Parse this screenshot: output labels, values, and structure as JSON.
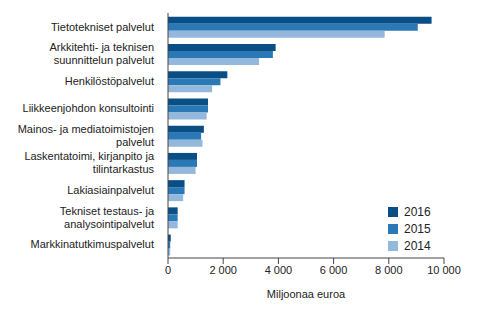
{
  "chart_data": {
    "type": "bar",
    "orientation": "horizontal",
    "categories": [
      "Tietotekniset palvelut",
      "Arkkitehti- ja teknisen suunnittelun palvelut",
      "Henkilöstöpalvelut",
      "Liikkeenjohdon konsultointi",
      "Mainos- ja mediatoimistojen palvelut",
      "Laskentatoimi, kirjanpito ja tilintarkastus",
      "Lakiasiainpalvelut",
      "Tekniset testaus- ja analysointipalvelut",
      "Markkinatutkimuspalvelut"
    ],
    "series": [
      {
        "name": "2016",
        "color": "#0a4e86",
        "values": [
          9550,
          3900,
          2150,
          1450,
          1300,
          1050,
          600,
          350,
          100
        ]
      },
      {
        "name": "2015",
        "color": "#2a78b5",
        "values": [
          9050,
          3800,
          1900,
          1450,
          1200,
          1050,
          600,
          350,
          80
        ]
      },
      {
        "name": "2014",
        "color": "#94b8dc",
        "values": [
          7850,
          3300,
          1600,
          1400,
          1250,
          1000,
          550,
          350,
          80
        ]
      }
    ],
    "xlabel": "Miljoonaa euroa",
    "xlim": [
      0,
      10000
    ],
    "xticks": [
      0,
      {
        "value": 2000,
        "label": "2 000"
      },
      {
        "value": 4000,
        "label": "4 000"
      },
      {
        "value": 6000,
        "label": "6 000"
      },
      {
        "value": 8000,
        "label": "8 000"
      },
      {
        "value": 10000,
        "label": "10 000"
      }
    ],
    "grid": false,
    "legend": "lower right"
  }
}
